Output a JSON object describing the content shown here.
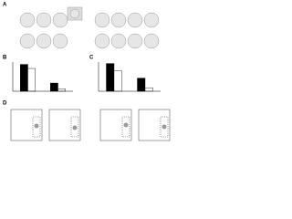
{
  "panels": {
    "a": "A",
    "b": "B",
    "c": "C",
    "d": "D"
  },
  "chart_data": [
    {
      "type": "bar",
      "categories": [
        null,
        null
      ],
      "series": [
        {
          "color": "#000000",
          "values": [
            92,
            28
          ]
        },
        {
          "color": "#ffffff",
          "values": [
            78,
            8
          ]
        }
      ],
      "ylim": [
        0,
        100
      ]
    },
    {
      "type": "bar",
      "categories": [
        null,
        null
      ],
      "series": [
        {
          "color": "#000000",
          "values": [
            95,
            45
          ]
        },
        {
          "color": "#ffffff",
          "values": [
            70,
            12
          ]
        }
      ],
      "ylim": [
        0,
        100
      ]
    }
  ]
}
